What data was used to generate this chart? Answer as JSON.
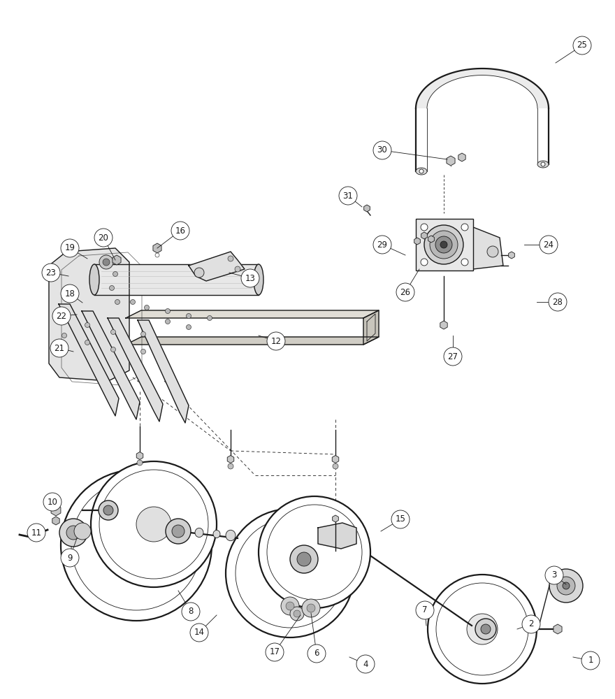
{
  "background_color": "#ffffff",
  "line_color": "#1a1a1a",
  "label_color": "#1a1a1a",
  "fig_width": 8.8,
  "fig_height": 10.0,
  "dpi": 100
}
